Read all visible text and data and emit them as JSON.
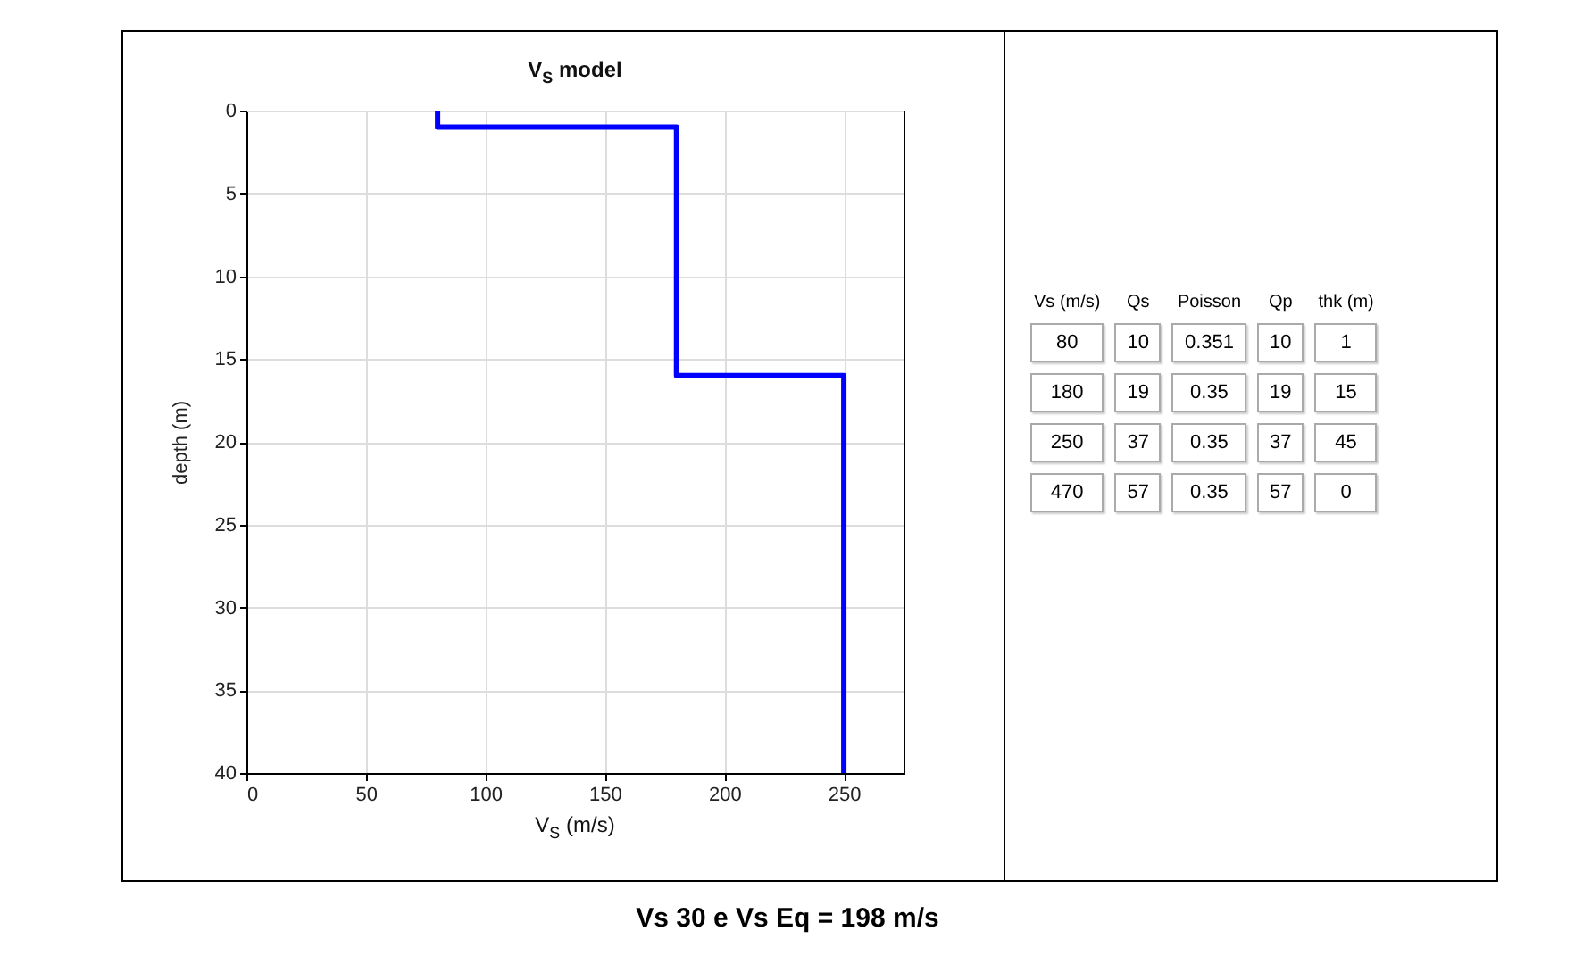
{
  "chart_data": [
    {
      "type": "line",
      "title": "V$_{S}$ model",
      "xlabel": "V$_{S}$ (m/s)",
      "ylabel": "depth (m)",
      "x": [
        80,
        80,
        180,
        180,
        250,
        250
      ],
      "series": [
        {
          "color": "#0000ff",
          "values": [
            0,
            1,
            1,
            16,
            16,
            40
          ]
        }
      ],
      "xlim": [
        0,
        275
      ],
      "xticks": [
        0,
        50,
        100,
        150,
        200,
        250
      ],
      "ylim": [
        40,
        0
      ],
      "yticks": [
        0,
        5,
        10,
        15,
        20,
        25,
        30,
        35,
        40
      ],
      "grid": true,
      "line_style": "solid",
      "annotations": [
        "Vs 30 e Vs Eq = 198 m/s"
      ]
    },
    {
      "type": "other",
      "categories": [
        "Vs (m/s)",
        "Qs",
        "Poisson",
        "Qp",
        "thk (m)"
      ],
      "annotations": [
        "80",
        "10",
        "0.351",
        "10",
        "1",
        "180",
        "19",
        "0.35",
        "19",
        "15",
        "250",
        "37",
        "0.35",
        "37",
        "45",
        "470",
        "57",
        "0.35",
        "57",
        "0"
      ]
    }
  ]
}
